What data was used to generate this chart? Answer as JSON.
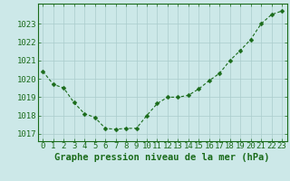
{
  "x": [
    0,
    1,
    2,
    3,
    4,
    5,
    6,
    7,
    8,
    9,
    10,
    11,
    12,
    13,
    14,
    15,
    16,
    17,
    18,
    19,
    20,
    21,
    22,
    23
  ],
  "y": [
    1020.4,
    1019.7,
    1019.5,
    1018.7,
    1018.1,
    1017.9,
    1017.3,
    1017.25,
    1017.3,
    1017.3,
    1018.0,
    1018.65,
    1019.0,
    1019.0,
    1019.1,
    1019.45,
    1019.9,
    1020.3,
    1021.0,
    1021.55,
    1022.15,
    1023.0,
    1023.5,
    1023.7
  ],
  "line_color": "#1a6b1a",
  "marker": "D",
  "marker_size": 2.5,
  "background_color": "#cce8e8",
  "grid_color": "#aacccc",
  "xlabel": "Graphe pression niveau de la mer (hPa)",
  "xlabel_fontsize": 7.5,
  "xlabel_color": "#1a6b1a",
  "tick_label_color": "#1a6b1a",
  "tick_label_fontsize": 6.5,
  "ylim": [
    1016.6,
    1024.1
  ],
  "xlim": [
    -0.5,
    23.5
  ],
  "yticks": [
    1017,
    1018,
    1019,
    1020,
    1021,
    1022,
    1023
  ],
  "xticks": [
    0,
    1,
    2,
    3,
    4,
    5,
    6,
    7,
    8,
    9,
    10,
    11,
    12,
    13,
    14,
    15,
    16,
    17,
    18,
    19,
    20,
    21,
    22,
    23
  ]
}
